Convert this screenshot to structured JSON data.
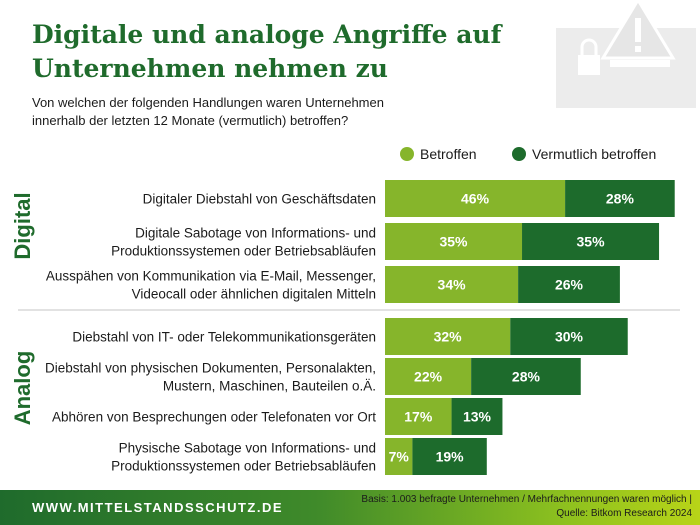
{
  "title": "Digitale und analoge Angriffe auf Unternehmen nehmen zu",
  "subtitle": "Von welchen der folgenden Handlungen waren Unternehmen innerhalb der letzten 12 Monate (vermutlich) betroffen?",
  "legend": [
    "Betroffen",
    "Vermutlich betroffen"
  ],
  "colors": {
    "betroffen": "#86b52b",
    "vermutlich": "#1d6b2c",
    "title": "#1f6b2c"
  },
  "chart_data": {
    "type": "bar",
    "orientation": "horizontal",
    "stacked": true,
    "title": "Digitale und analoge Angriffe auf Unternehmen nehmen zu",
    "unit": "%",
    "groups": [
      {
        "name": "Digital",
        "items": [
          0,
          1,
          2
        ]
      },
      {
        "name": "Analog",
        "items": [
          3,
          4,
          5,
          6
        ]
      }
    ],
    "categories": [
      [
        "Digitaler Diebstahl von Geschäftsdaten"
      ],
      [
        "Digitale Sabotage von Informations- und",
        "Produktionssystemen oder Betriebsabläufen"
      ],
      [
        "Ausspähen von Kommunikation via E-Mail, Messenger,",
        "Videocall oder ähnlichen digitalen Mitteln"
      ],
      [
        "Diebstahl von IT- oder Telekommunikationsgeräten"
      ],
      [
        "Diebstahl von physischen Dokumenten, Personalakten,",
        "Mustern, Maschinen, Bauteilen o.Ä."
      ],
      [
        "Abhören von Besprechungen oder Telefonaten vor Ort"
      ],
      [
        "Physische Sabotage von Informations- und",
        "Produktionssystemen oder Betriebsabläufen"
      ]
    ],
    "series": [
      {
        "name": "Betroffen",
        "values": [
          46,
          35,
          34,
          32,
          22,
          17,
          7
        ]
      },
      {
        "name": "Vermutlich betroffen",
        "values": [
          28,
          35,
          26,
          30,
          28,
          13,
          19
        ]
      }
    ]
  },
  "footer": {
    "url": "WWW.MITTELSTANDSSCHUTZ.DE",
    "note_line1": "Basis: 1.003 befragte Unternehmen / Mehrfachnennungen waren möglich |",
    "note_line2": "Quelle: Bitkom Research 2024"
  }
}
